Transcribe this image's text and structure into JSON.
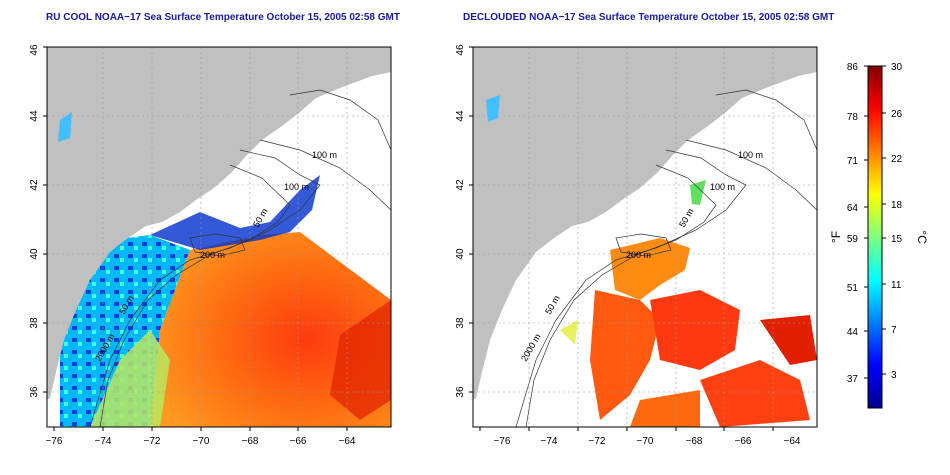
{
  "panels": [
    {
      "title": "RU COOL NOAA−17 Sea Surface Temperature October 15, 2005 02:58 GMT",
      "x_ticks": [
        "−76",
        "−74",
        "−72",
        "−70",
        "−68",
        "−66",
        "−64"
      ],
      "y_ticks": [
        "36",
        "38",
        "40",
        "42",
        "44",
        "46"
      ],
      "contour_labels": [
        "100 m",
        "100 m",
        "50 m",
        "200 m",
        "50 m",
        "2000 m"
      ]
    },
    {
      "title": "DECLOUDED NOAA−17 Sea Surface Temperature October 15, 2005 02:58 GMT",
      "x_ticks": [
        "−76",
        "−74",
        "−72",
        "−70",
        "−68",
        "−66",
        "−64"
      ],
      "y_ticks": [
        "36",
        "38",
        "40",
        "42",
        "44",
        "46"
      ],
      "contour_labels": [
        "100 m",
        "100 m",
        "50 m",
        "200 m",
        "50 m",
        "2000 m"
      ]
    }
  ],
  "colorbar": {
    "fahrenheit_unit": "°F",
    "celsius_unit": "°C",
    "fahrenheit_ticks": [
      "86",
      "78",
      "71",
      "64",
      "59",
      "51",
      "44",
      "37"
    ],
    "celsius_ticks": [
      "30",
      "26",
      "22",
      "18",
      "15",
      "11",
      "7",
      "3"
    ],
    "range_c": [
      0,
      30
    ],
    "colors": [
      "#00008f",
      "#0000ff",
      "#007fff",
      "#00ffff",
      "#7fff7f",
      "#ffff00",
      "#ff7f00",
      "#ff0000",
      "#7f0000"
    ]
  },
  "colors": {
    "land": "#c0c0c0",
    "ocean_nodata": "#ffffff",
    "title": "#1a1aa0"
  }
}
